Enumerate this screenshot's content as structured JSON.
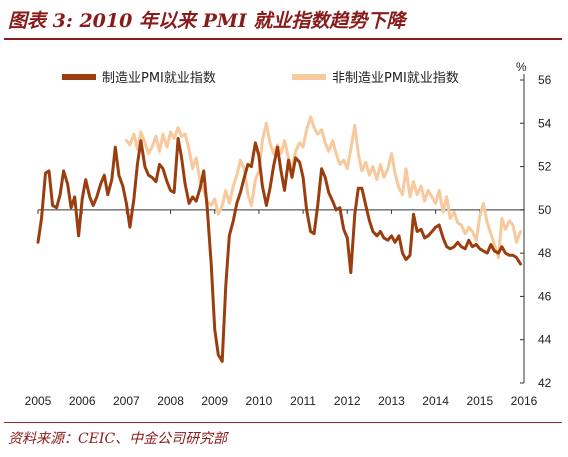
{
  "header": {
    "title": "图表 3: 2010 年以来 PMI 就业指数趋势下降"
  },
  "footer": {
    "source": "资料来源：CEIC、中金公司研究部"
  },
  "colors": {
    "manufacturing": "#9a3e0f",
    "non_manufacturing": "#f7c99c",
    "title": "#8a1b1b"
  },
  "chart_data": {
    "type": "line",
    "unit_label": "%",
    "xlim": [
      2005,
      2016
    ],
    "ylim": [
      42,
      56
    ],
    "x_ticks": [
      "2005",
      "2006",
      "2007",
      "2008",
      "2009",
      "2010",
      "2011",
      "2012",
      "2013",
      "2014",
      "2015",
      "2016"
    ],
    "y_ticks": [
      42,
      44,
      46,
      48,
      50,
      52,
      54,
      56
    ],
    "reference_line": 50,
    "grid": false,
    "legend_position": "top",
    "y_axis_side": "right",
    "series": [
      {
        "name": "制造业PMI就业指数",
        "color": "#9a3e0f",
        "points": [
          [
            2005.0,
            48.5
          ],
          [
            2005.08,
            49.6
          ],
          [
            2005.17,
            51.7
          ],
          [
            2005.25,
            51.8
          ],
          [
            2005.33,
            50.2
          ],
          [
            2005.42,
            50.1
          ],
          [
            2005.5,
            50.7
          ],
          [
            2005.58,
            51.8
          ],
          [
            2005.67,
            51.2
          ],
          [
            2005.75,
            50.1
          ],
          [
            2005.83,
            50.6
          ],
          [
            2005.92,
            48.8
          ],
          [
            2006.0,
            50.5
          ],
          [
            2006.08,
            51.4
          ],
          [
            2006.17,
            50.6
          ],
          [
            2006.25,
            50.2
          ],
          [
            2006.33,
            50.6
          ],
          [
            2006.42,
            51.2
          ],
          [
            2006.5,
            51.6
          ],
          [
            2006.58,
            50.7
          ],
          [
            2006.67,
            51.4
          ],
          [
            2006.75,
            52.9
          ],
          [
            2006.83,
            51.6
          ],
          [
            2006.92,
            51.1
          ],
          [
            2007.0,
            50.3
          ],
          [
            2007.08,
            49.2
          ],
          [
            2007.17,
            50.5
          ],
          [
            2007.25,
            52.1
          ],
          [
            2007.33,
            53.2
          ],
          [
            2007.42,
            52.0
          ],
          [
            2007.5,
            51.6
          ],
          [
            2007.58,
            51.5
          ],
          [
            2007.67,
            51.3
          ],
          [
            2007.75,
            52.1
          ],
          [
            2007.83,
            51.9
          ],
          [
            2007.92,
            51.3
          ],
          [
            2008.0,
            50.9
          ],
          [
            2008.08,
            50.8
          ],
          [
            2008.17,
            53.3
          ],
          [
            2008.25,
            52.4
          ],
          [
            2008.33,
            51.2
          ],
          [
            2008.42,
            50.3
          ],
          [
            2008.5,
            50.6
          ],
          [
            2008.58,
            50.4
          ],
          [
            2008.67,
            51.0
          ],
          [
            2008.75,
            51.8
          ],
          [
            2008.83,
            50.1
          ],
          [
            2008.92,
            47.5
          ],
          [
            2009.0,
            44.5
          ],
          [
            2009.08,
            43.3
          ],
          [
            2009.17,
            43.0
          ],
          [
            2009.25,
            46.5
          ],
          [
            2009.33,
            48.8
          ],
          [
            2009.42,
            49.5
          ],
          [
            2009.5,
            50.3
          ],
          [
            2009.58,
            50.8
          ],
          [
            2009.67,
            51.5
          ],
          [
            2009.75,
            52.1
          ],
          [
            2009.83,
            52.0
          ],
          [
            2009.92,
            53.1
          ],
          [
            2010.0,
            52.5
          ],
          [
            2010.08,
            51.1
          ],
          [
            2010.17,
            50.2
          ],
          [
            2010.25,
            51.0
          ],
          [
            2010.33,
            52.0
          ],
          [
            2010.42,
            52.9
          ],
          [
            2010.5,
            51.8
          ],
          [
            2010.58,
            50.9
          ],
          [
            2010.67,
            52.3
          ],
          [
            2010.75,
            51.5
          ],
          [
            2010.83,
            52.4
          ],
          [
            2010.92,
            52.2
          ],
          [
            2011.0,
            51.5
          ],
          [
            2011.08,
            50.0
          ],
          [
            2011.17,
            49.0
          ],
          [
            2011.25,
            48.9
          ],
          [
            2011.33,
            50.2
          ],
          [
            2011.42,
            51.9
          ],
          [
            2011.5,
            51.5
          ],
          [
            2011.58,
            50.8
          ],
          [
            2011.67,
            50.4
          ],
          [
            2011.75,
            50.0
          ],
          [
            2011.83,
            50.1
          ],
          [
            2011.92,
            49.1
          ],
          [
            2012.0,
            48.7
          ],
          [
            2012.08,
            47.1
          ],
          [
            2012.17,
            49.8
          ],
          [
            2012.25,
            51.0
          ],
          [
            2012.33,
            51.0
          ],
          [
            2012.42,
            50.2
          ],
          [
            2012.5,
            49.5
          ],
          [
            2012.58,
            49.0
          ],
          [
            2012.67,
            48.8
          ],
          [
            2012.75,
            49.0
          ],
          [
            2012.83,
            48.7
          ],
          [
            2012.92,
            48.6
          ],
          [
            2013.0,
            48.8
          ],
          [
            2013.08,
            48.5
          ],
          [
            2013.17,
            48.8
          ],
          [
            2013.25,
            48.0
          ],
          [
            2013.33,
            47.7
          ],
          [
            2013.42,
            47.9
          ],
          [
            2013.5,
            49.8
          ],
          [
            2013.58,
            49.0
          ],
          [
            2013.67,
            49.1
          ],
          [
            2013.75,
            48.7
          ],
          [
            2013.83,
            48.8
          ],
          [
            2013.92,
            49.0
          ],
          [
            2014.0,
            49.2
          ],
          [
            2014.08,
            49.3
          ],
          [
            2014.17,
            48.7
          ],
          [
            2014.25,
            48.3
          ],
          [
            2014.33,
            48.2
          ],
          [
            2014.42,
            48.3
          ],
          [
            2014.5,
            48.5
          ],
          [
            2014.58,
            48.3
          ],
          [
            2014.67,
            48.2
          ],
          [
            2014.75,
            48.6
          ],
          [
            2014.83,
            48.3
          ],
          [
            2014.92,
            48.4
          ],
          [
            2015.0,
            48.2
          ],
          [
            2015.08,
            48.1
          ],
          [
            2015.17,
            48.0
          ],
          [
            2015.25,
            48.4
          ],
          [
            2015.33,
            48.1
          ],
          [
            2015.42,
            48.0
          ],
          [
            2015.5,
            48.3
          ],
          [
            2015.58,
            48.0
          ],
          [
            2015.67,
            47.9
          ],
          [
            2015.75,
            47.9
          ],
          [
            2015.83,
            47.8
          ],
          [
            2015.92,
            47.5
          ]
        ]
      },
      {
        "name": "非制造业PMI就业指数",
        "color": "#f7c99c",
        "points": [
          [
            2007.0,
            53.2
          ],
          [
            2007.08,
            53.0
          ],
          [
            2007.17,
            53.5
          ],
          [
            2007.25,
            52.8
          ],
          [
            2007.33,
            53.6
          ],
          [
            2007.42,
            53.1
          ],
          [
            2007.5,
            52.6
          ],
          [
            2007.58,
            52.9
          ],
          [
            2007.67,
            53.4
          ],
          [
            2007.75,
            52.7
          ],
          [
            2007.83,
            53.5
          ],
          [
            2007.92,
            52.9
          ],
          [
            2008.0,
            53.6
          ],
          [
            2008.08,
            53.3
          ],
          [
            2008.17,
            53.8
          ],
          [
            2008.25,
            53.4
          ],
          [
            2008.33,
            53.5
          ],
          [
            2008.42,
            52.8
          ],
          [
            2008.5,
            51.9
          ],
          [
            2008.58,
            52.4
          ],
          [
            2008.67,
            51.3
          ],
          [
            2008.75,
            50.9
          ],
          [
            2008.83,
            50.4
          ],
          [
            2008.92,
            50.2
          ],
          [
            2009.0,
            50.5
          ],
          [
            2009.08,
            49.8
          ],
          [
            2009.17,
            50.2
          ],
          [
            2009.25,
            50.9
          ],
          [
            2009.33,
            50.3
          ],
          [
            2009.42,
            51.1
          ],
          [
            2009.5,
            51.6
          ],
          [
            2009.58,
            52.3
          ],
          [
            2009.67,
            51.9
          ],
          [
            2009.75,
            50.7
          ],
          [
            2009.83,
            50.2
          ],
          [
            2009.92,
            51.4
          ],
          [
            2010.0,
            51.8
          ],
          [
            2010.08,
            53.2
          ],
          [
            2010.17,
            54.0
          ],
          [
            2010.25,
            53.1
          ],
          [
            2010.33,
            52.6
          ],
          [
            2010.42,
            53.0
          ],
          [
            2010.5,
            52.6
          ],
          [
            2010.58,
            53.2
          ],
          [
            2010.67,
            52.4
          ],
          [
            2010.75,
            51.9
          ],
          [
            2010.83,
            52.7
          ],
          [
            2010.92,
            53.1
          ],
          [
            2011.0,
            52.9
          ],
          [
            2011.08,
            53.7
          ],
          [
            2011.17,
            54.3
          ],
          [
            2011.25,
            53.8
          ],
          [
            2011.33,
            53.5
          ],
          [
            2011.42,
            53.7
          ],
          [
            2011.5,
            53.1
          ],
          [
            2011.58,
            52.7
          ],
          [
            2011.67,
            53.2
          ],
          [
            2011.75,
            52.6
          ],
          [
            2011.83,
            52.1
          ],
          [
            2011.92,
            52.3
          ],
          [
            2012.0,
            51.9
          ],
          [
            2012.08,
            52.8
          ],
          [
            2012.17,
            53.9
          ],
          [
            2012.25,
            52.6
          ],
          [
            2012.33,
            51.8
          ],
          [
            2012.42,
            52.2
          ],
          [
            2012.5,
            51.6
          ],
          [
            2012.58,
            52.0
          ],
          [
            2012.67,
            51.4
          ],
          [
            2012.75,
            52.1
          ],
          [
            2012.83,
            51.5
          ],
          [
            2012.92,
            51.9
          ],
          [
            2013.0,
            52.6
          ],
          [
            2013.08,
            51.7
          ],
          [
            2013.17,
            51.0
          ],
          [
            2013.25,
            50.7
          ],
          [
            2013.33,
            51.9
          ],
          [
            2013.42,
            50.6
          ],
          [
            2013.5,
            51.3
          ],
          [
            2013.58,
            50.7
          ],
          [
            2013.67,
            51.1
          ],
          [
            2013.75,
            50.4
          ],
          [
            2013.83,
            50.9
          ],
          [
            2013.92,
            50.6
          ],
          [
            2014.0,
            50.3
          ],
          [
            2014.08,
            50.9
          ],
          [
            2014.17,
            49.9
          ],
          [
            2014.25,
            50.6
          ],
          [
            2014.33,
            49.6
          ],
          [
            2014.42,
            49.9
          ],
          [
            2014.5,
            49.4
          ],
          [
            2014.58,
            49.3
          ],
          [
            2014.67,
            48.9
          ],
          [
            2014.75,
            49.2
          ],
          [
            2014.83,
            49.0
          ],
          [
            2014.92,
            48.6
          ],
          [
            2015.0,
            49.7
          ],
          [
            2015.08,
            50.3
          ],
          [
            2015.17,
            49.4
          ],
          [
            2015.25,
            48.9
          ],
          [
            2015.33,
            48.4
          ],
          [
            2015.42,
            47.8
          ],
          [
            2015.5,
            49.6
          ],
          [
            2015.58,
            49.1
          ],
          [
            2015.67,
            49.5
          ],
          [
            2015.75,
            49.3
          ],
          [
            2015.83,
            48.5
          ],
          [
            2015.92,
            49.0
          ]
        ]
      }
    ]
  }
}
